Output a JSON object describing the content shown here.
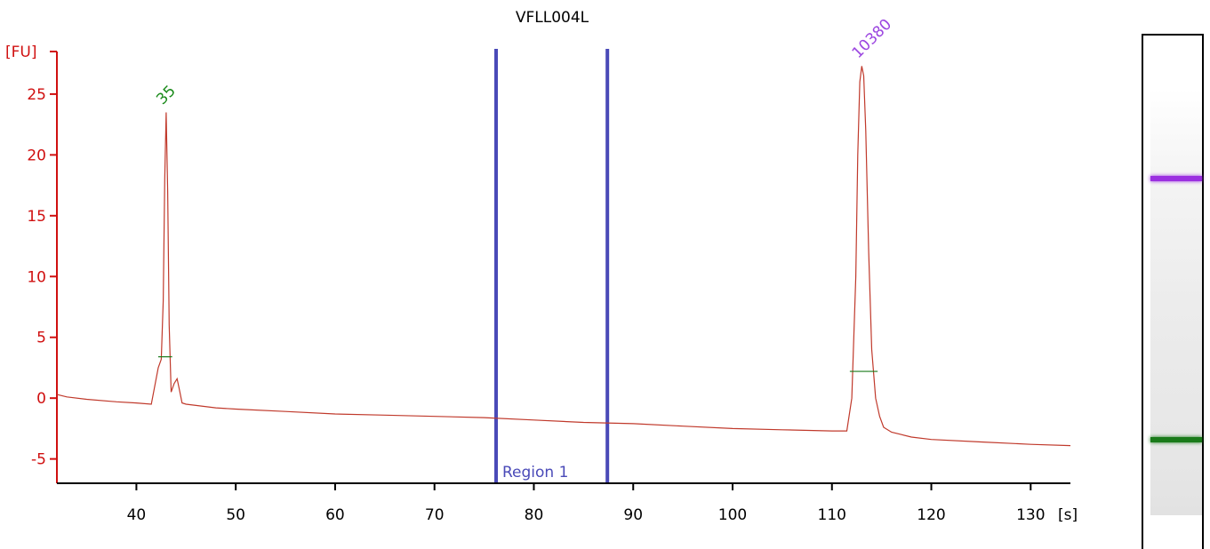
{
  "chart_data": {
    "type": "line",
    "title": "VFLL004L",
    "ylabel": "[FU]",
    "xlabel": "[s]",
    "xlim": [
      32,
      134
    ],
    "ylim": [
      -7,
      28.5
    ],
    "xticks": [
      40,
      50,
      60,
      70,
      80,
      90,
      100,
      110,
      120,
      130
    ],
    "yticks": [
      -5,
      0,
      5,
      10,
      15,
      20,
      25
    ],
    "grid": false,
    "series": [
      {
        "color": "#c0392b",
        "x": [
          32.0,
          33.0,
          35.0,
          38.0,
          40.0,
          41.5,
          42.2,
          42.5,
          42.7,
          42.85,
          43.0,
          43.15,
          43.3,
          43.5,
          43.8,
          44.1,
          44.3,
          44.6,
          45.0,
          46.0,
          48.0,
          50.0,
          55.0,
          60.0,
          65.0,
          70.0,
          75.0,
          80.0,
          85.0,
          90.0,
          95.0,
          100.0,
          105.0,
          110.0,
          111.5,
          112.0,
          112.4,
          112.6,
          112.8,
          113.0,
          113.2,
          113.4,
          113.7,
          114.0,
          114.4,
          114.8,
          115.2,
          116.0,
          117.0,
          118.0,
          120.0,
          125.0,
          130.0,
          134.0
        ],
        "y": [
          0.3,
          0.1,
          -0.1,
          -0.3,
          -0.4,
          -0.5,
          2.5,
          3.2,
          8.0,
          18.0,
          23.5,
          17.0,
          6.0,
          0.5,
          1.2,
          1.6,
          0.8,
          -0.4,
          -0.5,
          -0.6,
          -0.8,
          -0.9,
          -1.1,
          -1.3,
          -1.4,
          -1.5,
          -1.6,
          -1.8,
          -2.0,
          -2.1,
          -2.3,
          -2.5,
          -2.6,
          -2.7,
          -2.7,
          0.0,
          10.0,
          20.0,
          26.0,
          27.3,
          26.5,
          22.0,
          12.0,
          4.0,
          0.0,
          -1.5,
          -2.4,
          -2.8,
          -3.0,
          -3.2,
          -3.4,
          -3.6,
          -3.8,
          -3.9
        ]
      }
    ],
    "peaks": [
      {
        "label": "35",
        "x": 43.0,
        "y": 23.5,
        "color": "#1a8a1a"
      },
      {
        "label": "10380",
        "x": 113.0,
        "y": 27.3,
        "color": "#9b45e0"
      }
    ],
    "region": {
      "label": "Region 1",
      "x_start": 76.2,
      "x_end": 87.4,
      "color": "#4a4ab8"
    },
    "gel_bands": [
      {
        "fraction": 0.3,
        "color": "#9b30e0"
      },
      {
        "fraction": 0.845,
        "color": "#1a7a1a"
      }
    ]
  }
}
